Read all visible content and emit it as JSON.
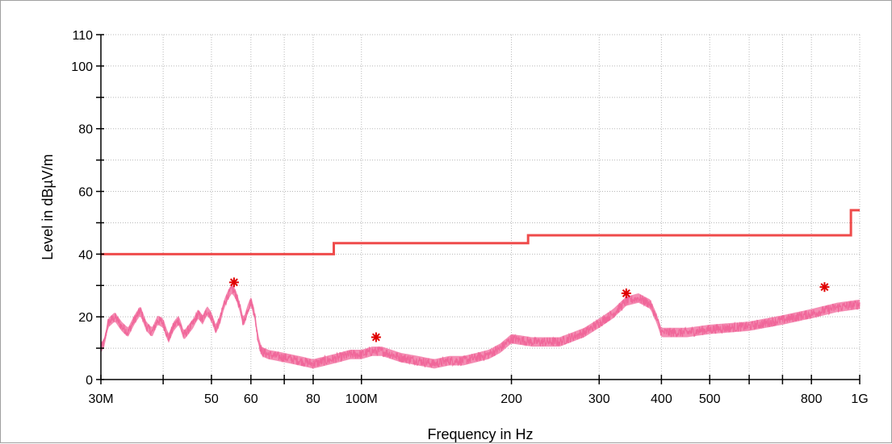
{
  "chart_data": {
    "type": "line",
    "title": "",
    "xlabel": "Frequency in Hz",
    "ylabel": "Level in dBµV/m",
    "x_scale": "log",
    "xlim": [
      30000000,
      1000000000
    ],
    "ylim": [
      0,
      110
    ],
    "grid": true,
    "legend": "none",
    "x_ticks": [
      {
        "value": 30000000,
        "label": "30M"
      },
      {
        "value": 40000000,
        "label": ""
      },
      {
        "value": 50000000,
        "label": "50"
      },
      {
        "value": 60000000,
        "label": "60"
      },
      {
        "value": 70000000,
        "label": ""
      },
      {
        "value": 80000000,
        "label": "80"
      },
      {
        "value": 100000000,
        "label": "100M"
      },
      {
        "value": 200000000,
        "label": "200"
      },
      {
        "value": 300000000,
        "label": "300"
      },
      {
        "value": 400000000,
        "label": "400"
      },
      {
        "value": 500000000,
        "label": "500"
      },
      {
        "value": 600000000,
        "label": ""
      },
      {
        "value": 700000000,
        "label": ""
      },
      {
        "value": 800000000,
        "label": "800"
      },
      {
        "value": 1000000000,
        "label": "1G"
      }
    ],
    "y_ticks": [
      {
        "value": 0,
        "label": "0"
      },
      {
        "value": 10,
        "label": ""
      },
      {
        "value": 20,
        "label": "20"
      },
      {
        "value": 30,
        "label": ""
      },
      {
        "value": 40,
        "label": "40"
      },
      {
        "value": 50,
        "label": ""
      },
      {
        "value": 60,
        "label": "60"
      },
      {
        "value": 70,
        "label": ""
      },
      {
        "value": 80,
        "label": "80"
      },
      {
        "value": 90,
        "label": ""
      },
      {
        "value": 100,
        "label": "100"
      },
      {
        "value": 110,
        "label": "110"
      }
    ],
    "series": [
      {
        "role": "limit",
        "color": "#ef4b4b",
        "x": [
          30000000,
          88000000,
          88000000,
          216000000,
          216000000,
          960000000,
          960000000,
          1000000000
        ],
        "y": [
          40,
          40,
          43.5,
          43.5,
          46,
          46,
          54,
          54
        ]
      },
      {
        "role": "measurement",
        "color": "#f0679a",
        "noise_amplitude_db": 1.5,
        "x": [
          30000000,
          30500000,
          31000000,
          32000000,
          33000000,
          34000000,
          35000000,
          36000000,
          37000000,
          38000000,
          39000000,
          40000000,
          41000000,
          42000000,
          43000000,
          44000000,
          45000000,
          46000000,
          47000000,
          48000000,
          49000000,
          50000000,
          51000000,
          52000000,
          53000000,
          54000000,
          55000000,
          56000000,
          57000000,
          58000000,
          59000000,
          60000000,
          61000000,
          62000000,
          63000000,
          65000000,
          70000000,
          75000000,
          80000000,
          85000000,
          90000000,
          95000000,
          100000000,
          105000000,
          110000000,
          120000000,
          130000000,
          140000000,
          150000000,
          160000000,
          170000000,
          180000000,
          190000000,
          200000000,
          220000000,
          250000000,
          280000000,
          300000000,
          320000000,
          340000000,
          360000000,
          380000000,
          390000000,
          400000000,
          450000000,
          500000000,
          600000000,
          700000000,
          800000000,
          900000000,
          1000000000
        ],
        "y": [
          10,
          12,
          18,
          20,
          17,
          15,
          19,
          22,
          17,
          15,
          19,
          18,
          13,
          17,
          19,
          14,
          16,
          18,
          21,
          19,
          22,
          20,
          16,
          19,
          24,
          27,
          29,
          27,
          23,
          18,
          22,
          25,
          21,
          13,
          9,
          8,
          7,
          6,
          5,
          6,
          7,
          8,
          8,
          9,
          9,
          7,
          6,
          5,
          6,
          6,
          7,
          8,
          10,
          13,
          12,
          12,
          15,
          18,
          21,
          25,
          26,
          24,
          20,
          15,
          15,
          16,
          17,
          19,
          21,
          23,
          24
        ]
      }
    ],
    "markers": [
      {
        "x": 55500000,
        "y": 31
      },
      {
        "x": 107000000,
        "y": 13.5
      },
      {
        "x": 340000000,
        "y": 27.5
      },
      {
        "x": 850000000,
        "y": 29.5
      }
    ]
  }
}
